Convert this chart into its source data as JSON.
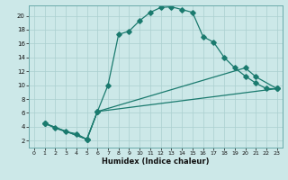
{
  "xlabel": "Humidex (Indice chaleur)",
  "bg_color": "#cce8e8",
  "line_color": "#1a7a6e",
  "grid_color": "#aacfcf",
  "xlim": [
    -0.5,
    23.5
  ],
  "ylim": [
    1,
    21.5
  ],
  "xticks": [
    0,
    1,
    2,
    3,
    4,
    5,
    6,
    7,
    8,
    9,
    10,
    11,
    12,
    13,
    14,
    15,
    16,
    17,
    18,
    19,
    20,
    21,
    22,
    23
  ],
  "yticks": [
    2,
    4,
    6,
    8,
    10,
    12,
    14,
    16,
    18,
    20
  ],
  "line1_x": [
    1,
    2,
    3,
    4,
    5,
    6,
    7,
    8,
    9,
    10,
    11,
    12,
    13,
    14,
    15,
    16,
    17,
    18,
    19,
    20,
    21,
    22,
    23
  ],
  "line1_y": [
    4.5,
    3.8,
    3.3,
    3.0,
    2.2,
    6.2,
    10.0,
    17.3,
    17.8,
    19.3,
    20.5,
    21.2,
    21.3,
    20.9,
    20.5,
    17.0,
    16.2,
    14.0,
    12.5,
    11.3,
    10.3,
    9.5,
    9.5
  ],
  "line2_x": [
    1,
    5,
    6,
    20,
    21,
    23
  ],
  "line2_y": [
    4.5,
    2.2,
    6.2,
    12.5,
    11.2,
    9.5
  ],
  "line3_x": [
    1,
    5,
    6,
    23
  ],
  "line3_y": [
    4.5,
    2.2,
    6.2,
    9.5
  ]
}
